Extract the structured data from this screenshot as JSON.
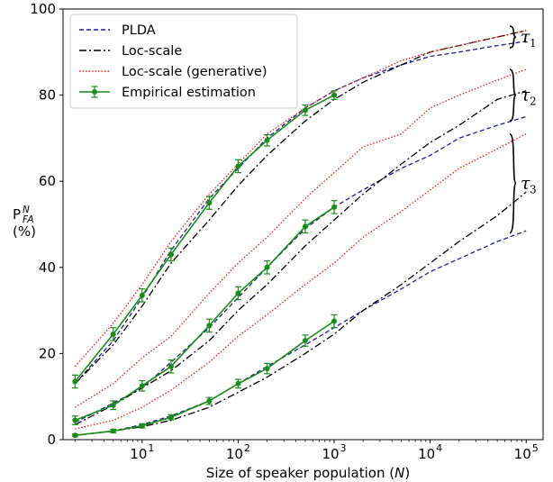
{
  "chart_data": {
    "type": "line",
    "xscale": "log",
    "xlim": [
      1.5,
      150000
    ],
    "ylim": [
      0,
      100
    ],
    "xlabel": "Size of speaker population (N)",
    "ylabel_main": "P",
    "ylabel_sup": "N",
    "ylabel_sub": "FA",
    "ylabel_unit": "(%)",
    "yticks": [
      0,
      20,
      40,
      60,
      80,
      100
    ],
    "xticks": [
      {
        "value": 10,
        "base": "10",
        "exp": "1"
      },
      {
        "value": 100,
        "base": "10",
        "exp": "2"
      },
      {
        "value": 1000,
        "base": "10",
        "exp": "3"
      },
      {
        "value": 10000,
        "base": "10",
        "exp": "4"
      },
      {
        "value": 100000,
        "base": "10",
        "exp": "5"
      }
    ],
    "legend": {
      "placement": "top-left",
      "entries": [
        {
          "label": "PLDA",
          "style": "dashed",
          "color": "#1f1f8f"
        },
        {
          "label": "Loc-scale",
          "style": "dashdot",
          "color": "#000000"
        },
        {
          "label": "Loc-scale (generative)",
          "style": "dotted",
          "color": "#e8231a"
        },
        {
          "label": "Empirical estimation",
          "style": "errorbar",
          "color": "#1a8a1a"
        }
      ]
    },
    "annotations": [
      {
        "sym": "τ",
        "sub": "1",
        "y_top": 96,
        "y_bottom": 91
      },
      {
        "sym": "τ",
        "sub": "2",
        "y_top": 86,
        "y_bottom": 74
      },
      {
        "sym": "τ",
        "sub": "3",
        "y_top": 71,
        "y_bottom": 48
      }
    ],
    "series": [
      {
        "group": "τ1",
        "kind": "plda",
        "x": [
          2,
          5,
          10,
          20,
          50,
          100,
          200,
          500,
          1000,
          2000,
          5000,
          10000,
          20000,
          50000,
          100000
        ],
        "y": [
          13,
          23,
          33,
          44,
          56,
          63,
          70,
          77,
          81,
          84,
          87,
          89,
          90,
          91.5,
          92.5
        ]
      },
      {
        "group": "τ1",
        "kind": "locscale",
        "x": [
          2,
          5,
          10,
          20,
          50,
          100,
          200,
          500,
          1000,
          2000,
          5000,
          10000,
          20000,
          50000,
          100000
        ],
        "y": [
          13,
          22,
          31,
          41,
          51,
          59,
          66,
          74,
          79,
          83,
          87,
          90,
          91.5,
          93.5,
          95
        ]
      },
      {
        "group": "τ1",
        "kind": "generative",
        "x": [
          2,
          5,
          10,
          20,
          50,
          100,
          200,
          500,
          1000,
          2000,
          5000,
          10000,
          20000,
          50000,
          100000
        ],
        "y": [
          17,
          27,
          36,
          46,
          57,
          64,
          71,
          77,
          81,
          84,
          88,
          90,
          91.5,
          93.5,
          95
        ]
      },
      {
        "group": "τ1",
        "kind": "empirical",
        "x": [
          2,
          5,
          10,
          20,
          50,
          100,
          200,
          500,
          1000
        ],
        "y": [
          13.5,
          24.5,
          33.5,
          43,
          55,
          63.5,
          69.5,
          76.5,
          80
        ],
        "err": [
          1.5,
          1.5,
          1.5,
          1.5,
          1.5,
          1.5,
          1.3,
          1.2,
          1.0
        ]
      },
      {
        "group": "τ2",
        "kind": "plda",
        "x": [
          2,
          5,
          10,
          20,
          50,
          100,
          200,
          500,
          1000,
          2000,
          5000,
          10000,
          20000,
          50000,
          100000
        ],
        "y": [
          4,
          8.5,
          12,
          18,
          26,
          33,
          40,
          49,
          54,
          58,
          63,
          66,
          70,
          73,
          75
        ]
      },
      {
        "group": "τ2",
        "kind": "locscale",
        "x": [
          2,
          5,
          10,
          20,
          50,
          100,
          200,
          500,
          1000,
          2000,
          5000,
          10000,
          20000,
          50000,
          100000
        ],
        "y": [
          3.5,
          8,
          12,
          16,
          23,
          30,
          36,
          45,
          51,
          57,
          64,
          69,
          73,
          79,
          81
        ]
      },
      {
        "group": "τ2",
        "kind": "generative",
        "x": [
          2,
          5,
          10,
          20,
          50,
          100,
          200,
          500,
          1000,
          2000,
          5000,
          10000,
          20000,
          50000,
          100000
        ],
        "y": [
          7.5,
          13,
          19,
          24,
          34,
          41,
          47,
          56,
          62,
          68,
          71,
          77,
          80,
          83.5,
          86
        ]
      },
      {
        "group": "τ2",
        "kind": "empirical",
        "x": [
          2,
          5,
          10,
          20,
          50,
          100,
          200,
          500,
          1000
        ],
        "y": [
          4.5,
          8,
          12.5,
          17,
          26.5,
          34,
          40,
          49.5,
          54
        ],
        "err": [
          1.0,
          1.0,
          1.2,
          1.5,
          1.5,
          1.5,
          1.5,
          1.5,
          1.5
        ]
      },
      {
        "group": "τ3",
        "kind": "plda",
        "x": [
          2,
          5,
          10,
          20,
          50,
          100,
          200,
          500,
          1000,
          2000,
          5000,
          10000,
          20000,
          50000,
          100000
        ],
        "y": [
          1,
          2,
          3.5,
          5.5,
          9,
          13,
          17,
          22,
          26,
          30,
          35,
          39,
          42,
          46,
          48.5
        ]
      },
      {
        "group": "τ3",
        "kind": "locscale",
        "x": [
          2,
          5,
          10,
          20,
          50,
          100,
          200,
          500,
          1000,
          2000,
          5000,
          10000,
          20000,
          50000,
          100000
        ],
        "y": [
          1,
          2,
          3,
          4.5,
          7.5,
          11,
          14.5,
          20,
          24.5,
          30,
          36,
          41,
          46,
          52,
          57.5
        ]
      },
      {
        "group": "τ3",
        "kind": "generative",
        "x": [
          2,
          5,
          10,
          20,
          50,
          100,
          200,
          500,
          1000,
          2000,
          5000,
          10000,
          20000,
          50000,
          100000
        ],
        "y": [
          2.5,
          4.5,
          7.5,
          11.5,
          18,
          24,
          29,
          36,
          41,
          47,
          53,
          58,
          63,
          67.5,
          71
        ]
      },
      {
        "group": "τ3",
        "kind": "empirical",
        "x": [
          2,
          5,
          10,
          20,
          50,
          100,
          200,
          500,
          1000
        ],
        "y": [
          1,
          2,
          3.2,
          5.2,
          9,
          13,
          16.5,
          23,
          27.5
        ],
        "err": [
          0.3,
          0.4,
          0.5,
          0.6,
          0.8,
          1.0,
          1.2,
          1.3,
          1.5
        ]
      }
    ]
  }
}
